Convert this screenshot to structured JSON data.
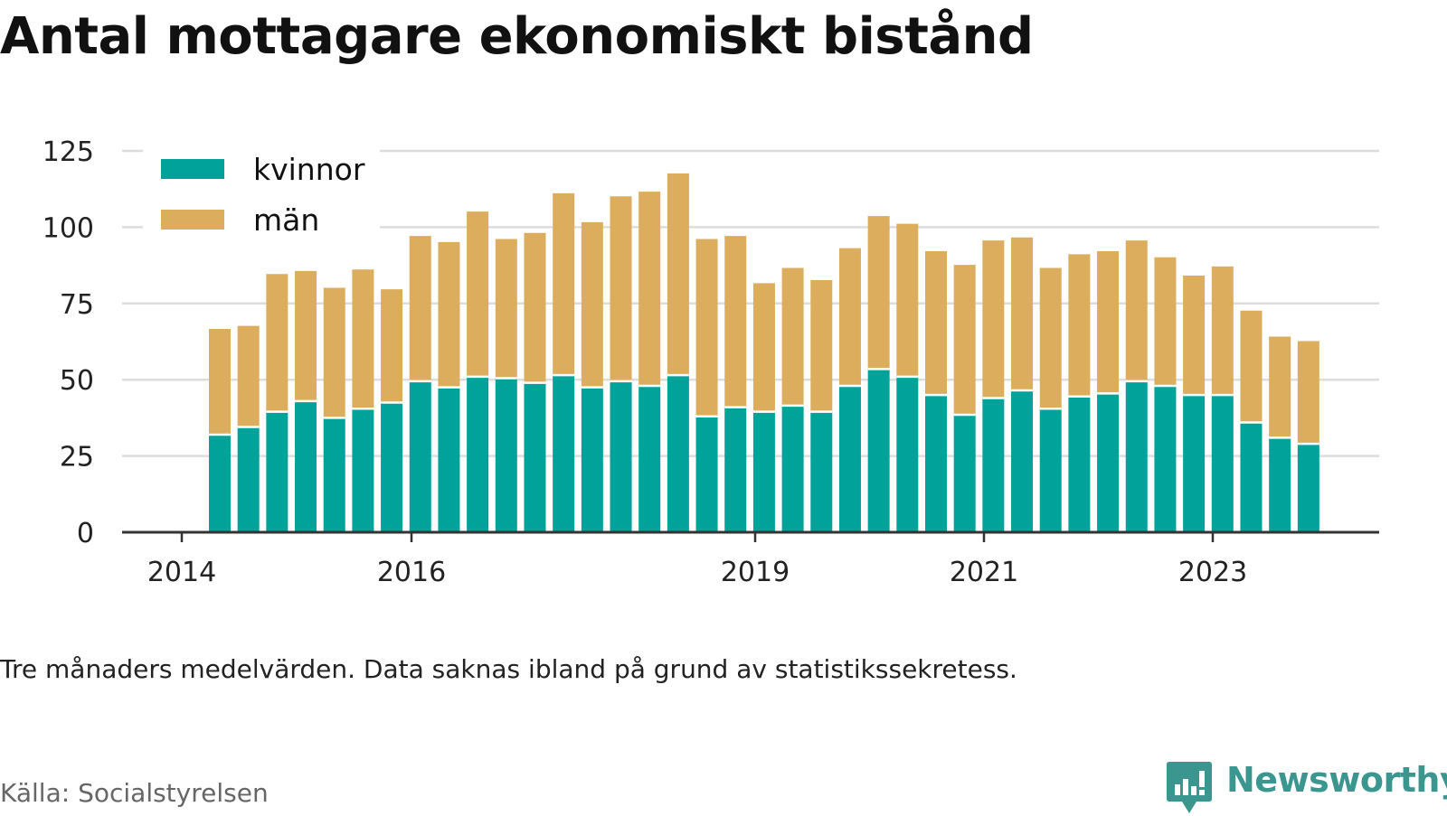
{
  "title": "Antal mottagare ekonomiskt bistånd",
  "note": "Tre månaders medelvärden. Data saknas ibland på grund av statistikssekretess.",
  "source": "Källa: Socialstyrelsen",
  "logo": {
    "name": "Newsworthy",
    "icon": "newsworthy-speech-bubble-bar-icon"
  },
  "colors": {
    "kvinnor": "#00a29a",
    "man": "#dbad5c",
    "grid": "#dddddd",
    "axis": "#333333",
    "brand": "#3a968e"
  },
  "chart_data": {
    "type": "bar",
    "stacked": true,
    "x_ticks": [
      "2014",
      "2016",
      "2019",
      "2021",
      "2023"
    ],
    "y_ticks": [
      0,
      25,
      50,
      75,
      100,
      125
    ],
    "ylim": [
      0,
      125
    ],
    "legend_position": "top-left",
    "series": [
      {
        "name": "kvinnor",
        "values": [
          32,
          34.5,
          39.5,
          43,
          37.5,
          40.5,
          42.5,
          49.5,
          47.5,
          51,
          50.5,
          49,
          51.5,
          47.5,
          49.5,
          48,
          51.5,
          38,
          41,
          39.5,
          41.5,
          39.5,
          48,
          53.5,
          51,
          45,
          38.5,
          44,
          46.5,
          40.5,
          44.5,
          45.5,
          49.5,
          48,
          45,
          45,
          36,
          31,
          29
        ]
      },
      {
        "name": "män",
        "values": [
          35,
          33.5,
          45.5,
          43,
          43,
          46,
          37.5,
          48,
          48,
          54.5,
          46,
          49.5,
          60,
          54.5,
          61,
          64,
          66.5,
          58.5,
          56.5,
          42.5,
          45.5,
          43.5,
          45.5,
          50.5,
          50.5,
          47.5,
          49.5,
          52,
          50.5,
          46.5,
          47,
          47,
          46.5,
          42.5,
          39.5,
          42.5,
          37,
          33.5,
          34
        ]
      }
    ]
  }
}
